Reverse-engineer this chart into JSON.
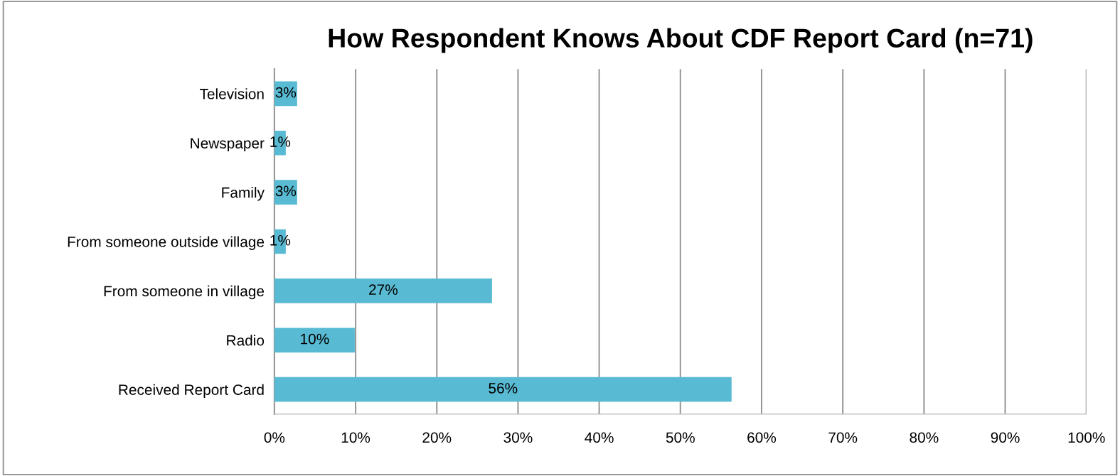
{
  "chart_data": {
    "type": "bar",
    "orientation": "horizontal",
    "title": "How Respondent Knows About CDF Report Card (n=71)",
    "categories": [
      "Television",
      "Newspaper",
      "Family",
      "From someone outside village",
      "From someone in village",
      "Radio",
      "Received Report Card"
    ],
    "values": [
      2.8,
      1.4,
      2.8,
      1.4,
      26.8,
      9.9,
      56.3
    ],
    "value_labels": [
      "3%",
      "1%",
      "3%",
      "1%",
      "27%",
      "10%",
      "56%"
    ],
    "color": "#59bbd3",
    "xlim": [
      0,
      100
    ],
    "xticks": [
      {
        "value": 0,
        "label": "0%"
      },
      {
        "value": 10,
        "label": "10%"
      },
      {
        "value": 20,
        "label": "20%"
      },
      {
        "value": 30,
        "label": "30%"
      },
      {
        "value": 40,
        "label": "40%"
      },
      {
        "value": 50,
        "label": "50%"
      },
      {
        "value": 60,
        "label": "60%"
      },
      {
        "value": 70,
        "label": "70%"
      },
      {
        "value": 80,
        "label": "80%"
      },
      {
        "value": 90,
        "label": "90%"
      },
      {
        "value": 100,
        "label": "100%"
      }
    ],
    "grid": "x",
    "legend": false
  }
}
